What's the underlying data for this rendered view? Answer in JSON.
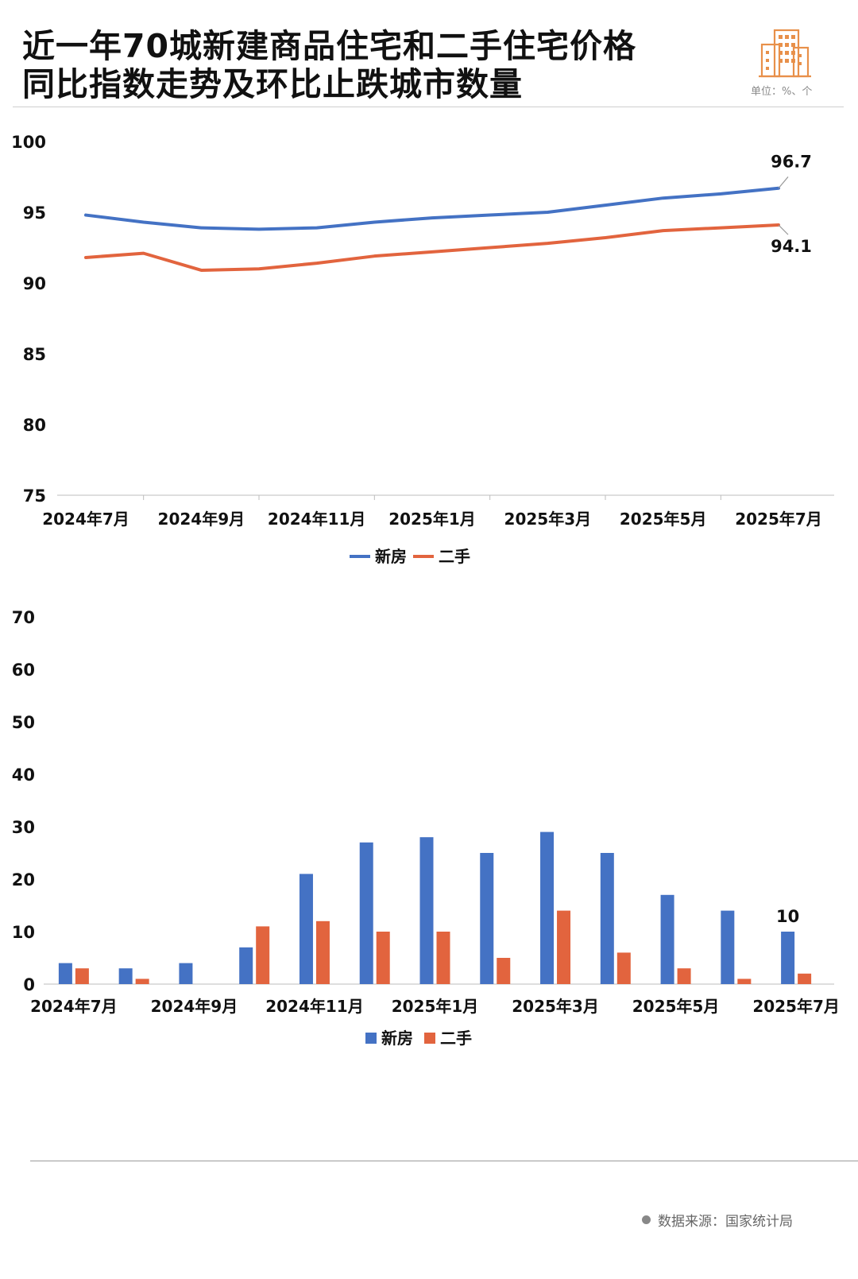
{
  "header": {
    "title_line1": "近一年70城新建商品住宅和二手住宅价格",
    "title_line2": "同比指数走势及环比止跌城市数量",
    "unit": "单位：%、个",
    "icon": "building-icon",
    "accent_color": "#E8904A"
  },
  "source": {
    "label": "数据来源：国家统计局"
  },
  "chart_data": [
    {
      "type": "line",
      "title": "",
      "xlabel": "",
      "ylabel": "",
      "ylim": [
        75,
        100
      ],
      "yticks": [
        75,
        80,
        85,
        90,
        95,
        100
      ],
      "grid": false,
      "legend": "bottom-center",
      "categories": [
        "2024年7月",
        "2024年8月",
        "2024年9月",
        "2024年10月",
        "2024年11月",
        "2024年12月",
        "2025年1月",
        "2025年2月",
        "2025年3月",
        "2025年4月",
        "2025年5月",
        "2025年6月",
        "2025年7月"
      ],
      "xtick_labels": [
        "2024年7月",
        "2024年9月",
        "2024年11月",
        "2025年1月",
        "2025年3月",
        "2025年5月",
        "2025年7月"
      ],
      "series": [
        {
          "name": "新房",
          "color": "#4472C4",
          "values": [
            94.8,
            94.3,
            93.9,
            93.8,
            93.9,
            94.3,
            94.6,
            94.8,
            95.0,
            95.5,
            96.0,
            96.3,
            96.7
          ]
        },
        {
          "name": "二手",
          "color": "#E2643E",
          "values": [
            91.8,
            92.1,
            90.9,
            91.0,
            91.4,
            91.9,
            92.2,
            92.5,
            92.8,
            93.2,
            93.7,
            93.9,
            94.1
          ]
        }
      ],
      "annotations": [
        {
          "series": 0,
          "index": 12,
          "label": "96.7"
        },
        {
          "series": 1,
          "index": 12,
          "label": "94.1"
        }
      ]
    },
    {
      "type": "bar",
      "title": "",
      "xlabel": "",
      "ylabel": "",
      "ylim": [
        0,
        70
      ],
      "yticks": [
        0,
        10,
        20,
        30,
        40,
        50,
        60,
        70
      ],
      "grid": false,
      "legend": "bottom-center",
      "categories": [
        "2024年7月",
        "2024年8月",
        "2024年9月",
        "2024年10月",
        "2024年11月",
        "2024年12月",
        "2025年1月",
        "2025年2月",
        "2025年3月",
        "2025年4月",
        "2025年5月",
        "2025年6月",
        "2025年7月"
      ],
      "xtick_labels": [
        "2024年7月",
        "2024年9月",
        "2024年11月",
        "2025年1月",
        "2025年3月",
        "2025年5月",
        "2025年7月"
      ],
      "series": [
        {
          "name": "新房",
          "color": "#4472C4",
          "values": [
            4,
            3,
            4,
            7,
            21,
            27,
            28,
            25,
            29,
            25,
            17,
            14,
            10
          ]
        },
        {
          "name": "二手",
          "color": "#E2643E",
          "values": [
            3,
            1,
            0,
            11,
            12,
            10,
            10,
            5,
            14,
            6,
            3,
            1,
            2
          ]
        }
      ],
      "annotations": [
        {
          "series": 0,
          "index": 12,
          "label": "10"
        }
      ]
    }
  ]
}
